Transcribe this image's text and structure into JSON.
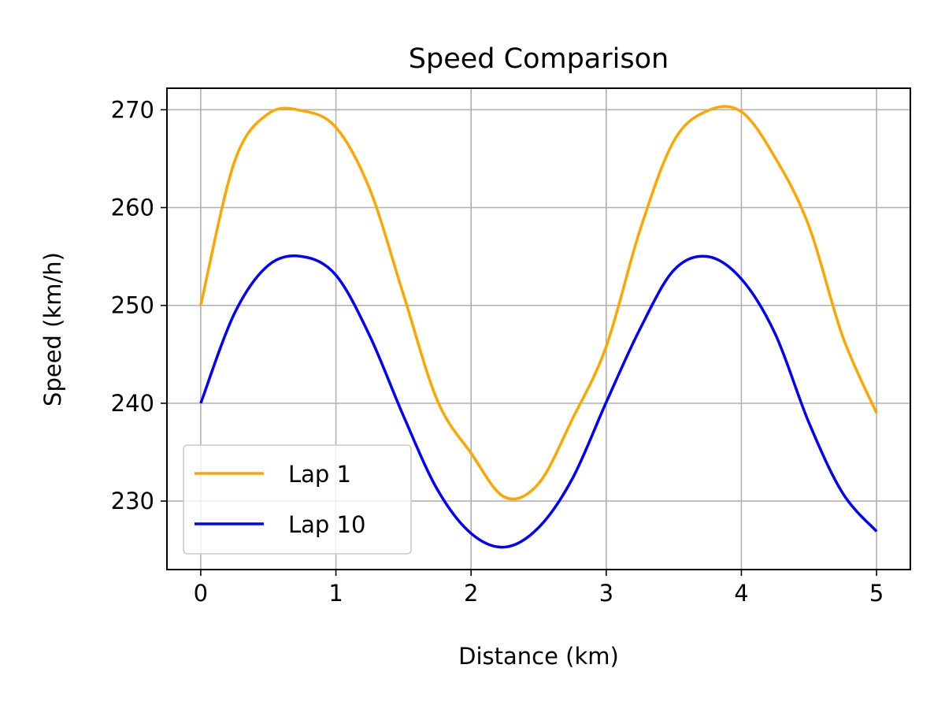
{
  "chart_data": {
    "type": "line",
    "title": "Speed Comparison",
    "xlabel": "Distance (km)",
    "ylabel": "Speed (km/h)",
    "xlim": [
      -0.25,
      5.25
    ],
    "ylim": [
      223,
      272.2
    ],
    "xticks": [
      0,
      1,
      2,
      3,
      4,
      5
    ],
    "yticks": [
      230,
      240,
      250,
      260,
      270
    ],
    "grid": true,
    "legend_position": "lower-left",
    "x": [
      0,
      0.25,
      0.5,
      0.75,
      1,
      1.25,
      1.5,
      1.75,
      2,
      2.25,
      2.5,
      2.75,
      3,
      3.25,
      3.5,
      3.75,
      4,
      4.25,
      4.5,
      4.75,
      5
    ],
    "series": [
      {
        "name": "Lap 1",
        "color": "#ffa500",
        "values": [
          250,
          264.7,
          269.6,
          269.9,
          268.2,
          261.9,
          251.1,
          240.3,
          234.9,
          230.4,
          231.8,
          238.4,
          245.8,
          257.7,
          266.8,
          269.9,
          269.8,
          265.1,
          258.1,
          246.8,
          239
        ]
      },
      {
        "name": "Lap 10",
        "color": "#0000ff",
        "values": [
          240,
          249.2,
          254.1,
          255,
          253.1,
          246.9,
          238.7,
          231.2,
          226.7,
          225.3,
          227.3,
          232.3,
          240.1,
          247.6,
          253.6,
          255,
          252.7,
          247.1,
          238,
          230.8,
          226.9
        ]
      }
    ]
  }
}
